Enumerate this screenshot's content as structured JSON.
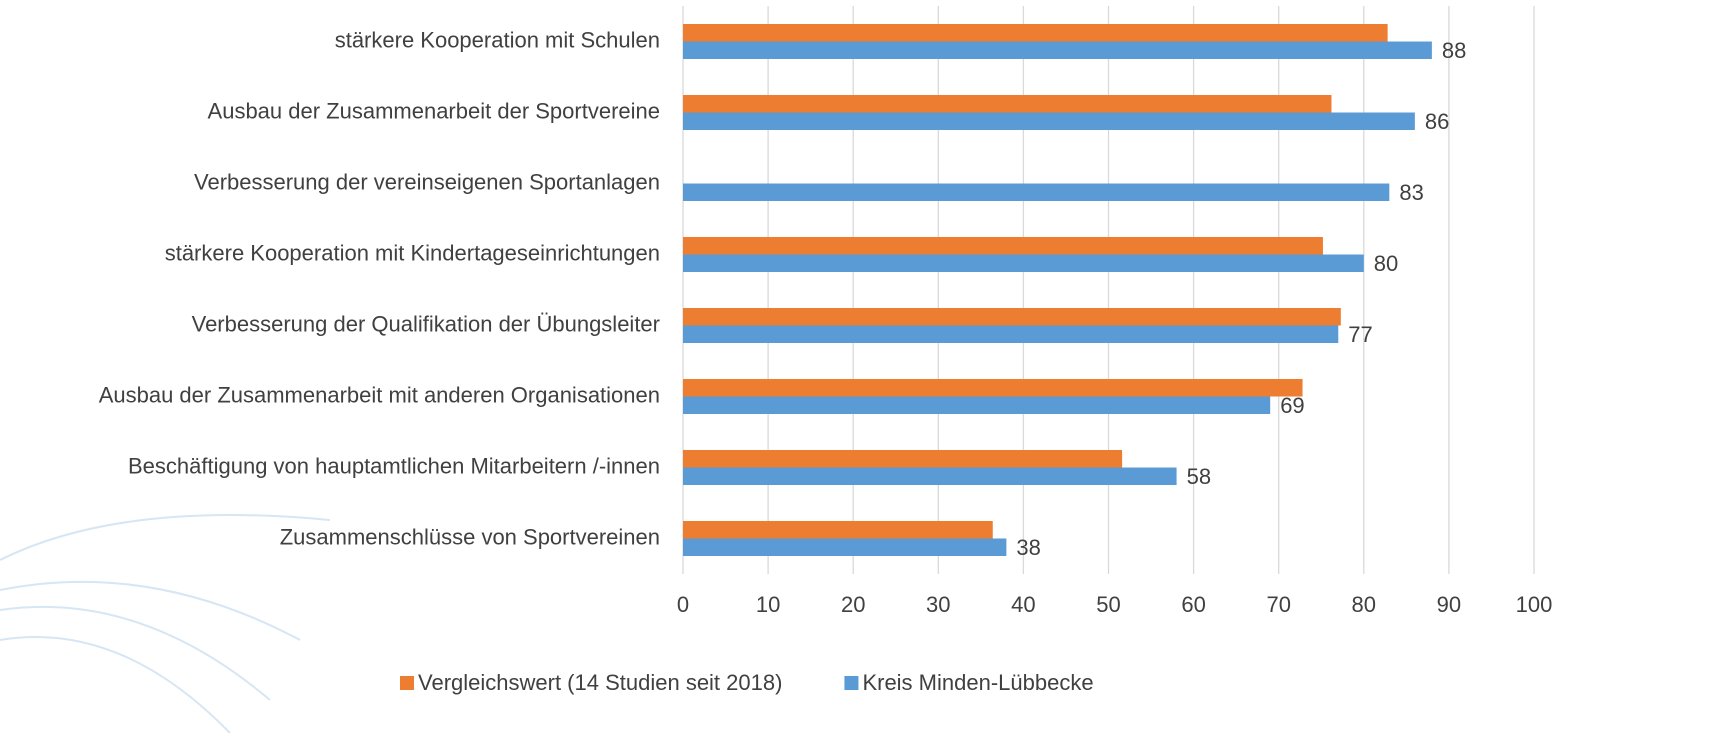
{
  "chart_data": {
    "type": "hbar",
    "categories": [
      "stärkere Kooperation mit Schulen",
      "Ausbau der Zusammenarbeit der Sportvereine",
      "Verbesserung der vereinseigenen Sportanlagen",
      "stärkere Kooperation mit Kindertageseinrichtungen",
      "Verbesserung der Qualifikation der Übungsleiter",
      "Ausbau der Zusammenarbeit mit anderen Organisationen",
      "Beschäftigung von hauptamtlichen Mitarbeitern /-innen",
      "Zusammenschlüsse von Sportvereinen"
    ],
    "series": [
      {
        "name": "Vergleichswert (14 Studien seit 2018)",
        "color": "#ed7d31",
        "values": [
          82.8,
          76.2,
          null,
          75.2,
          77.3,
          72.8,
          51.6,
          36.4
        ]
      },
      {
        "name": "Kreis Minden-Lübbecke",
        "color": "#5b9bd5",
        "values": [
          88,
          86,
          83,
          80,
          77,
          69,
          58,
          38
        ],
        "data_labels": true
      }
    ],
    "xlim": [
      0,
      100
    ],
    "xticks": [
      0,
      10,
      20,
      30,
      40,
      50,
      60,
      70,
      80,
      90,
      100
    ],
    "grid": true,
    "legend": "bottom"
  }
}
